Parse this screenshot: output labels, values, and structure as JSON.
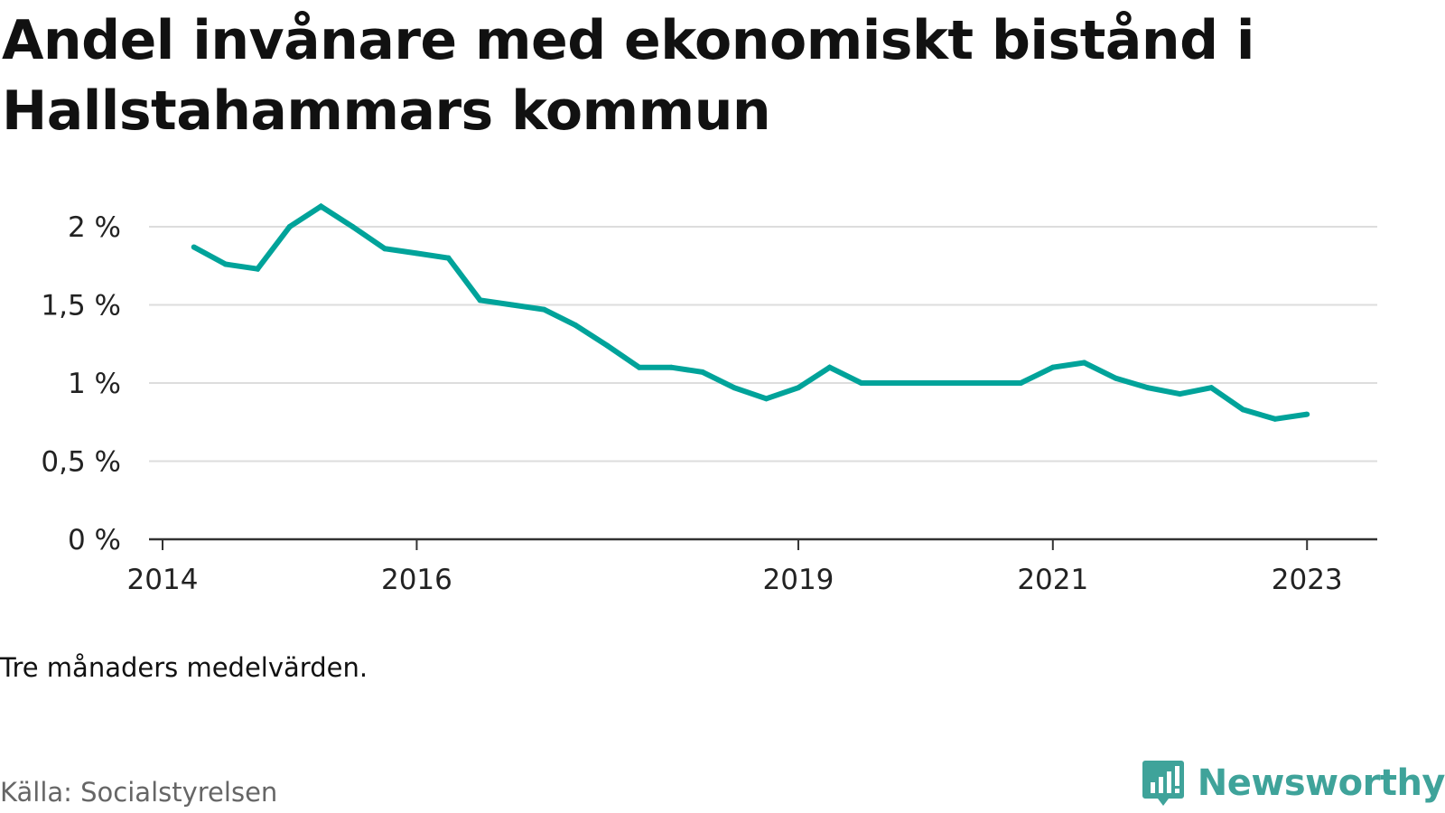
{
  "title": "Andel invånare med ekonomiskt bistånd i Hallstahammars kommun",
  "note": "Tre månaders medelvärden.",
  "source": "Källa: Socialstyrelsen",
  "brand": {
    "name": "Newsworthy",
    "icon": "newsworthy-logo-icon",
    "color": "#3fa39a"
  },
  "chart_data": {
    "type": "line",
    "line_color": "#00a39a",
    "grid": true,
    "ylim": [
      0,
      2
    ],
    "yticks": [
      {
        "value": 0,
        "label": "0 %"
      },
      {
        "value": 0.5,
        "label": "0,5 %"
      },
      {
        "value": 1,
        "label": "1 %"
      },
      {
        "value": 1.5,
        "label": "1,5 %"
      },
      {
        "value": 2,
        "label": "2 %"
      }
    ],
    "xlim": [
      "2014-01-01",
      "2023-07-01"
    ],
    "xticks": [
      {
        "value": "2014-01-01",
        "label": "2014"
      },
      {
        "value": "2016-01-01",
        "label": "2016"
      },
      {
        "value": "2019-01-01",
        "label": "2019"
      },
      {
        "value": "2021-01-01",
        "label": "2021"
      },
      {
        "value": "2023-01-01",
        "label": "2023"
      }
    ],
    "series": [
      {
        "x": [
          "2014-04-01",
          "2014-07-01",
          "2014-10-01",
          "2015-01-01",
          "2015-04-01",
          "2015-07-01",
          "2015-10-01",
          "2016-01-01",
          "2016-04-01",
          "2016-07-01",
          "2016-10-01",
          "2017-01-01",
          "2017-04-01",
          "2017-07-01",
          "2017-10-01",
          "2018-01-01",
          "2018-04-01",
          "2018-07-01",
          "2018-10-01",
          "2019-01-01",
          "2019-04-01",
          "2019-07-01",
          "2019-10-01",
          "2020-01-01",
          "2020-04-01",
          "2020-07-01",
          "2020-10-01",
          "2021-01-01",
          "2021-04-01",
          "2021-07-01",
          "2021-10-01",
          "2022-01-01",
          "2022-04-01",
          "2022-07-01",
          "2022-10-01",
          "2023-01-01"
        ],
        "values": [
          1.87,
          1.76,
          1.73,
          2.0,
          2.13,
          2.0,
          1.86,
          1.83,
          1.8,
          1.53,
          1.5,
          1.47,
          1.37,
          1.24,
          1.1,
          1.1,
          1.07,
          0.97,
          0.9,
          0.97,
          1.1,
          1.0,
          1.0,
          1.0,
          1.0,
          1.0,
          1.0,
          1.1,
          1.13,
          1.03,
          0.97,
          0.93,
          0.97,
          0.83,
          0.77,
          0.8
        ]
      }
    ]
  }
}
